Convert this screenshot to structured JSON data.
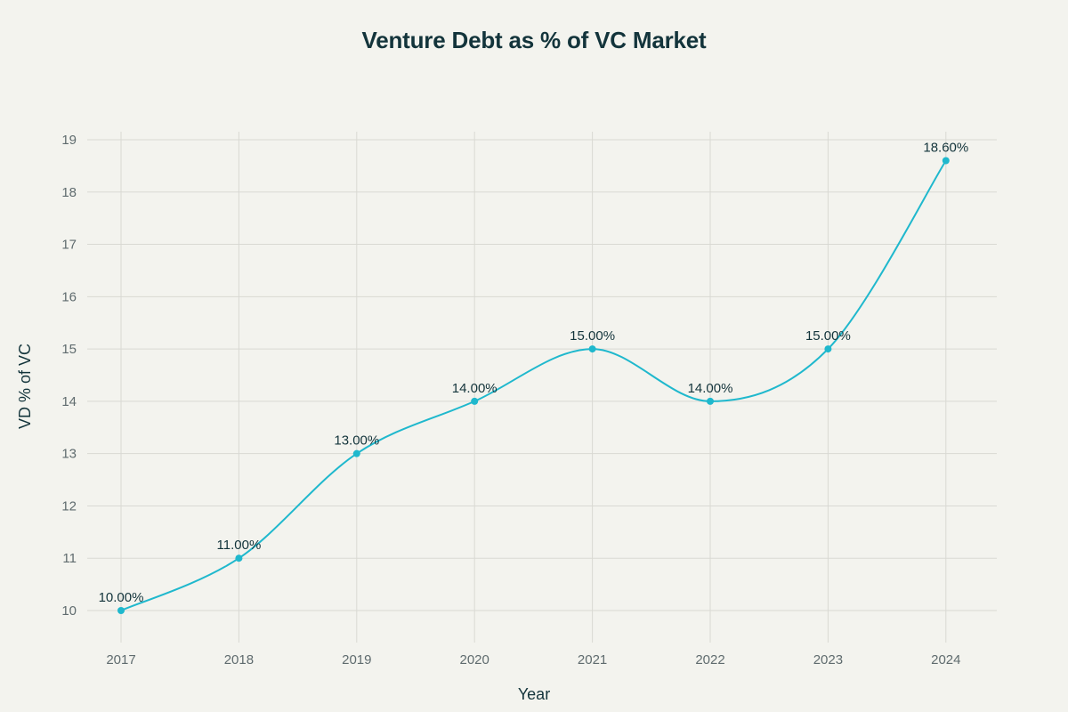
{
  "title": "Venture Debt as % of VC Market",
  "colors": {
    "background": "#f3f3ee",
    "line": "#1fb8cd",
    "grid": "#d9d9d3",
    "title": "#13343b",
    "tick": "#5f6b6e"
  },
  "chart_data": {
    "type": "line",
    "title": "Venture Debt as % of VC Market",
    "xlabel": "Year",
    "ylabel": "VD % of VC",
    "categories": [
      "2017",
      "2018",
      "2019",
      "2020",
      "2021",
      "2022",
      "2023",
      "2024"
    ],
    "series": [
      {
        "name": "VD % of VC",
        "values": [
          10,
          11,
          13,
          14,
          15,
          14,
          15,
          18.6
        ],
        "labels": [
          "10.00%",
          "11.00%",
          "13.00%",
          "14.00%",
          "15.00%",
          "14.00%",
          "15.00%",
          "18.60%"
        ]
      }
    ],
    "ylim": [
      9.4,
      19.15
    ],
    "yticks": [
      10,
      11,
      12,
      13,
      14,
      15,
      16,
      17,
      18,
      19
    ],
    "grid": true,
    "line_shape": "spline",
    "markers": true,
    "legend": "none"
  }
}
